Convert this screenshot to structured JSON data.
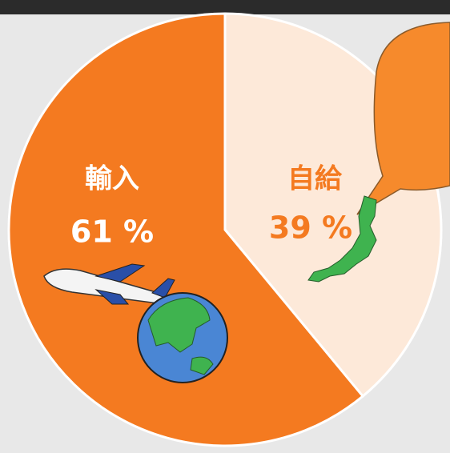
{
  "chart_data": {
    "type": "pie",
    "categories": [
      "自給",
      "輸入"
    ],
    "values": [
      39,
      61
    ],
    "value_labels": [
      "39 %",
      "61 %"
    ],
    "colors": [
      "#fde9d9",
      "#f47a20"
    ],
    "label_colors": [
      "#f47a20",
      "#ffffff"
    ]
  }
}
